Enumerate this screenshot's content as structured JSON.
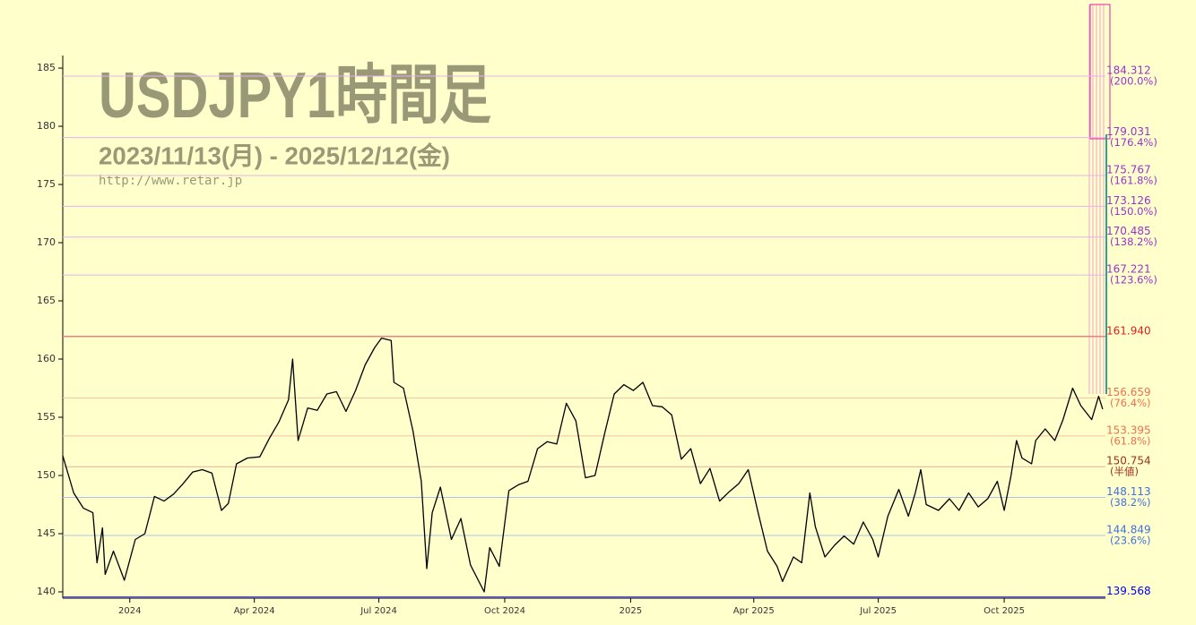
{
  "chart_data": {
    "type": "line",
    "title": "USDJPY1時間足",
    "subtitle": "2023/11/13(月) - 2025/12/12(金)",
    "source": "http://www.retar.jp",
    "color": "#000000",
    "xlim": [
      "2023-11-13",
      "2025-12-14"
    ],
    "xticks": [
      {
        "value": "2024-01-01",
        "label": "2024"
      },
      {
        "value": "2024-04-01",
        "label": "Apr 2024"
      },
      {
        "value": "2024-07-01",
        "label": "Jul 2024"
      },
      {
        "value": "2024-10-01",
        "label": "Oct 2024"
      },
      {
        "value": "2025-01-01",
        "label": "2025"
      },
      {
        "value": "2025-04-01",
        "label": "Apr 2025"
      },
      {
        "value": "2025-07-01",
        "label": "Jul 2025"
      },
      {
        "value": "2025-10-01",
        "label": "Oct 2025"
      }
    ],
    "ylim": [
      139.46,
      186.08
    ],
    "yticks": [
      140,
      145,
      150,
      155,
      160,
      165,
      170,
      175,
      180,
      185
    ],
    "grid": false,
    "levels": [
      {
        "value": 184.312,
        "pct": "(200.0%)",
        "color": "#9933cc",
        "line": "#e8b0e8"
      },
      {
        "value": 179.031,
        "pct": "(176.4%)",
        "color": "#9933cc",
        "line": "#e8b0e8"
      },
      {
        "value": 175.767,
        "pct": "(161.8%)",
        "color": "#9933cc",
        "line": "#e8b0e8"
      },
      {
        "value": 173.126,
        "pct": "(150.0%)",
        "color": "#9933cc",
        "line": "#e8b0e8"
      },
      {
        "value": 170.485,
        "pct": "(138.2%)",
        "color": "#9933cc",
        "line": "#e8b0e8"
      },
      {
        "value": 167.221,
        "pct": "(123.6%)",
        "color": "#9933cc",
        "line": "#e8b0e8"
      },
      {
        "value": 161.94,
        "label": "161.940",
        "color": "#e02020",
        "line": "#f08080"
      },
      {
        "value": 156.659,
        "pct": "(76.4%)",
        "color": "#f07050",
        "line": "#f5c0a0"
      },
      {
        "value": 153.395,
        "pct": "(61.8%)",
        "color": "#f07050",
        "line": "#f5c0a0"
      },
      {
        "value": 150.754,
        "pct": "(半値)",
        "color": "#a03020",
        "line": "#e0b0a0"
      },
      {
        "value": 148.113,
        "pct": "(38.2%)",
        "color": "#4070e0",
        "line": "#b0c0e8"
      },
      {
        "value": 144.849,
        "pct": "(23.6%)",
        "color": "#4070e0",
        "line": "#b0c0e8"
      },
      {
        "value": 139.568,
        "color": "#0000ee",
        "line": "#3030ee"
      }
    ],
    "x": [
      "2023-11-13",
      "2023-11-21",
      "2023-11-28",
      "2023-12-05",
      "2023-12-08",
      "2023-12-12",
      "2023-12-14",
      "2023-12-20",
      "2023-12-28",
      "2024-01-05",
      "2024-01-12",
      "2024-01-19",
      "2024-01-26",
      "2024-02-02",
      "2024-02-09",
      "2024-02-16",
      "2024-02-23",
      "2024-03-01",
      "2024-03-08",
      "2024-03-13",
      "2024-03-19",
      "2024-03-27",
      "2024-04-05",
      "2024-04-12",
      "2024-04-19",
      "2024-04-26",
      "2024-04-29",
      "2024-05-03",
      "2024-05-10",
      "2024-05-17",
      "2024-05-24",
      "2024-05-31",
      "2024-06-07",
      "2024-06-14",
      "2024-06-21",
      "2024-06-28",
      "2024-07-03",
      "2024-07-10",
      "2024-07-12",
      "2024-07-19",
      "2024-07-26",
      "2024-08-01",
      "2024-08-05",
      "2024-08-09",
      "2024-08-15",
      "2024-08-23",
      "2024-08-30",
      "2024-09-06",
      "2024-09-16",
      "2024-09-20",
      "2024-09-27",
      "2024-10-04",
      "2024-10-11",
      "2024-10-18",
      "2024-10-25",
      "2024-11-01",
      "2024-11-08",
      "2024-11-15",
      "2024-11-22",
      "2024-11-29",
      "2024-12-06",
      "2024-12-13",
      "2024-12-20",
      "2024-12-27",
      "2025-01-03",
      "2025-01-10",
      "2025-01-17",
      "2025-01-24",
      "2025-01-31",
      "2025-02-07",
      "2025-02-14",
      "2025-02-21",
      "2025-02-28",
      "2025-03-07",
      "2025-03-14",
      "2025-03-21",
      "2025-03-28",
      "2025-04-04",
      "2025-04-11",
      "2025-04-18",
      "2025-04-22",
      "2025-04-30",
      "2025-05-06",
      "2025-05-12",
      "2025-05-16",
      "2025-05-23",
      "2025-05-30",
      "2025-06-06",
      "2025-06-13",
      "2025-06-20",
      "2025-06-27",
      "2025-07-01",
      "2025-07-08",
      "2025-07-16",
      "2025-07-23",
      "2025-07-28",
      "2025-08-01",
      "2025-08-05",
      "2025-08-14",
      "2025-08-22",
      "2025-08-29",
      "2025-09-05",
      "2025-09-12",
      "2025-09-19",
      "2025-09-26",
      "2025-10-01",
      "2025-10-06",
      "2025-10-10",
      "2025-10-14",
      "2025-10-21",
      "2025-10-24",
      "2025-10-31",
      "2025-11-07",
      "2025-11-13",
      "2025-11-20",
      "2025-11-26",
      "2025-12-04",
      "2025-12-09",
      "2025-12-12"
    ],
    "values": [
      151.7,
      148.5,
      147.2,
      146.8,
      142.5,
      145.5,
      141.5,
      143.5,
      141.0,
      144.5,
      145.0,
      148.2,
      147.8,
      148.4,
      149.3,
      150.3,
      150.5,
      150.2,
      147.0,
      147.6,
      151.0,
      151.5,
      151.6,
      153.2,
      154.6,
      156.5,
      160.0,
      153.0,
      155.8,
      155.6,
      157.0,
      157.2,
      155.5,
      157.3,
      159.5,
      161.0,
      161.8,
      161.6,
      158.0,
      157.5,
      153.8,
      149.5,
      142.0,
      146.8,
      149.0,
      144.5,
      146.3,
      142.3,
      140.0,
      143.8,
      142.2,
      148.7,
      149.2,
      149.5,
      152.3,
      152.9,
      152.7,
      156.2,
      154.7,
      149.8,
      150.0,
      153.6,
      157.0,
      157.8,
      157.3,
      158.0,
      156.0,
      155.9,
      155.2,
      151.4,
      152.3,
      149.3,
      150.6,
      147.8,
      148.6,
      149.3,
      150.5,
      146.9,
      143.5,
      142.2,
      140.9,
      143.0,
      142.5,
      148.5,
      145.6,
      143.0,
      144.0,
      144.8,
      144.1,
      146.0,
      144.5,
      143.0,
      146.5,
      148.8,
      146.5,
      148.5,
      150.5,
      147.5,
      147.0,
      148.0,
      147.0,
      148.5,
      147.3,
      148.0,
      149.5,
      147.0,
      150.0,
      153.0,
      151.5,
      151.0,
      153.0,
      154.0,
      153.0,
      154.8,
      157.5,
      156.0,
      154.8,
      156.8,
      155.7
    ]
  }
}
